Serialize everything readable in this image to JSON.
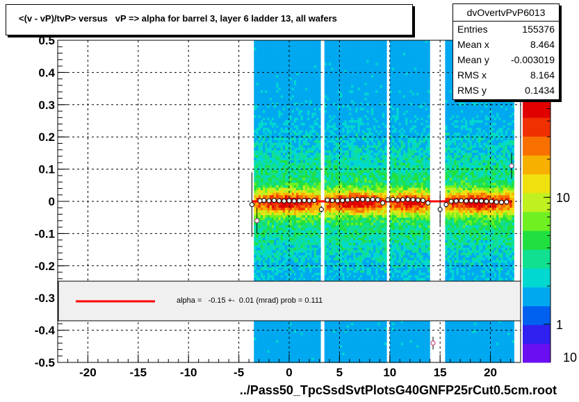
{
  "title": "<(v - vP)/tvP> versus   vP => alpha for barrel 3, layer 6 ladder 13, all wafers",
  "xlabel": "../Pass50_TpcSsdSvtPlotsG40GNFP25rCut0.5cm.root",
  "stats": {
    "name": "dvOvertvPvP6013",
    "rows": [
      {
        "key": "Entries",
        "value": "155376"
      },
      {
        "key": "Mean x",
        "value": "8.464"
      },
      {
        "key": "Mean y",
        "value": "-0.003019"
      },
      {
        "key": "RMS x",
        "value": "8.164"
      },
      {
        "key": "RMS y",
        "value": "0.1434"
      }
    ]
  },
  "fit_legend": "alpha =   -0.15 +-  0.01 (mrad) prob = 0.111",
  "colors": {
    "fit_line": "#ff0000",
    "marker": "#c0307a",
    "legend_bg": "#f0f0f0"
  },
  "chart_data": {
    "type": "heatmap",
    "xlim": [
      -23,
      23
    ],
    "ylim": [
      -0.5,
      0.5
    ],
    "x_ticks": [
      -20,
      -15,
      -10,
      -5,
      0,
      5,
      10,
      15,
      20
    ],
    "x_tick_labels": [
      "-20",
      "-15",
      "-10",
      "-5",
      "0",
      "5",
      "10",
      "15",
      "20"
    ],
    "y_ticks": [
      -0.5,
      -0.4,
      -0.3,
      -0.2,
      -0.1,
      0,
      0.1,
      0.2,
      0.3,
      0.4,
      0.5
    ],
    "y_tick_labels": [
      "-0.5",
      "-0.4",
      "-0.3",
      "-0.2",
      "-0.1",
      "0",
      "0.1",
      "0.2",
      "0.3",
      "0.4",
      "0.5"
    ],
    "grid": true,
    "colorbar": {
      "scale": "log",
      "range": [
        0.5,
        60
      ],
      "tick_values": [
        1,
        10
      ],
      "tick_labels": [
        "1",
        "10"
      ],
      "label": "10"
    },
    "data_bands_x": [
      [
        -3.5,
        3.0
      ],
      [
        3.5,
        9.5
      ],
      [
        10.0,
        13.8
      ],
      [
        15.5,
        22.2
      ]
    ],
    "profile_points": [
      {
        "x": -3.7,
        "y": -0.01,
        "err": 0.1
      },
      {
        "x": -3.2,
        "y": -0.06,
        "err": 0.04
      },
      {
        "x": -2.9,
        "y": 0.002,
        "err": 0.004
      },
      {
        "x": -2.5,
        "y": 0.003,
        "err": 0.003
      },
      {
        "x": -2.0,
        "y": 0.002,
        "err": 0.003
      },
      {
        "x": -1.5,
        "y": 0.003,
        "err": 0.003
      },
      {
        "x": -1.0,
        "y": 0.002,
        "err": 0.003
      },
      {
        "x": -0.5,
        "y": 0.001,
        "err": 0.003
      },
      {
        "x": 0.0,
        "y": 0.002,
        "err": 0.003
      },
      {
        "x": 0.5,
        "y": 0.001,
        "err": 0.003
      },
      {
        "x": 1.0,
        "y": 0.002,
        "err": 0.003
      },
      {
        "x": 1.5,
        "y": 0.003,
        "err": 0.003
      },
      {
        "x": 2.0,
        "y": 0.002,
        "err": 0.003
      },
      {
        "x": 2.5,
        "y": 0.003,
        "err": 0.003
      },
      {
        "x": 3.2,
        "y": -0.025,
        "err": 0.01
      },
      {
        "x": 3.8,
        "y": 0.004,
        "err": 0.003
      },
      {
        "x": 4.3,
        "y": 0.003,
        "err": 0.003
      },
      {
        "x": 4.8,
        "y": 0.002,
        "err": 0.003
      },
      {
        "x": 5.3,
        "y": 0.003,
        "err": 0.003
      },
      {
        "x": 5.8,
        "y": 0.004,
        "err": 0.003
      },
      {
        "x": 6.3,
        "y": 0.005,
        "err": 0.003
      },
      {
        "x": 6.8,
        "y": 0.006,
        "err": 0.003
      },
      {
        "x": 7.3,
        "y": 0.006,
        "err": 0.003
      },
      {
        "x": 7.8,
        "y": 0.005,
        "err": 0.003
      },
      {
        "x": 8.3,
        "y": 0.006,
        "err": 0.003
      },
      {
        "x": 8.8,
        "y": 0.005,
        "err": 0.003
      },
      {
        "x": 9.3,
        "y": -0.005,
        "err": 0.004
      },
      {
        "x": 9.8,
        "y": 0.005,
        "err": 0.003
      },
      {
        "x": 10.3,
        "y": 0.006,
        "err": 0.003
      },
      {
        "x": 10.8,
        "y": 0.004,
        "err": 0.003
      },
      {
        "x": 11.3,
        "y": 0.005,
        "err": 0.003
      },
      {
        "x": 11.8,
        "y": 0.006,
        "err": 0.003
      },
      {
        "x": 12.3,
        "y": 0.005,
        "err": 0.003
      },
      {
        "x": 12.8,
        "y": 0.004,
        "err": 0.003
      },
      {
        "x": 13.3,
        "y": 0.003,
        "err": 0.003
      },
      {
        "x": 13.8,
        "y": -0.005,
        "err": 0.004
      },
      {
        "x": 14.3,
        "y": -0.44,
        "err": 0.02
      },
      {
        "x": 15.0,
        "y": -0.025,
        "err": 0.05
      },
      {
        "x": 15.6,
        "y": -0.01,
        "err": 0.01
      },
      {
        "x": 16.1,
        "y": 0.0,
        "err": 0.004
      },
      {
        "x": 16.6,
        "y": 0.001,
        "err": 0.003
      },
      {
        "x": 17.1,
        "y": 0.002,
        "err": 0.003
      },
      {
        "x": 17.6,
        "y": 0.001,
        "err": 0.003
      },
      {
        "x": 18.1,
        "y": 0.002,
        "err": 0.003
      },
      {
        "x": 18.6,
        "y": 0.001,
        "err": 0.003
      },
      {
        "x": 19.1,
        "y": 0.001,
        "err": 0.003
      },
      {
        "x": 19.6,
        "y": 0.0,
        "err": 0.003
      },
      {
        "x": 20.1,
        "y": 0.0,
        "err": 0.003
      },
      {
        "x": 20.6,
        "y": -0.002,
        "err": 0.003
      },
      {
        "x": 21.1,
        "y": -0.003,
        "err": 0.004
      },
      {
        "x": 21.6,
        "y": -0.002,
        "err": 0.004
      },
      {
        "x": 22.1,
        "y": 0.11,
        "err": 0.04
      }
    ],
    "fit_line": {
      "x_range": [
        -3.7,
        22.0
      ],
      "y": 0.0
    }
  }
}
